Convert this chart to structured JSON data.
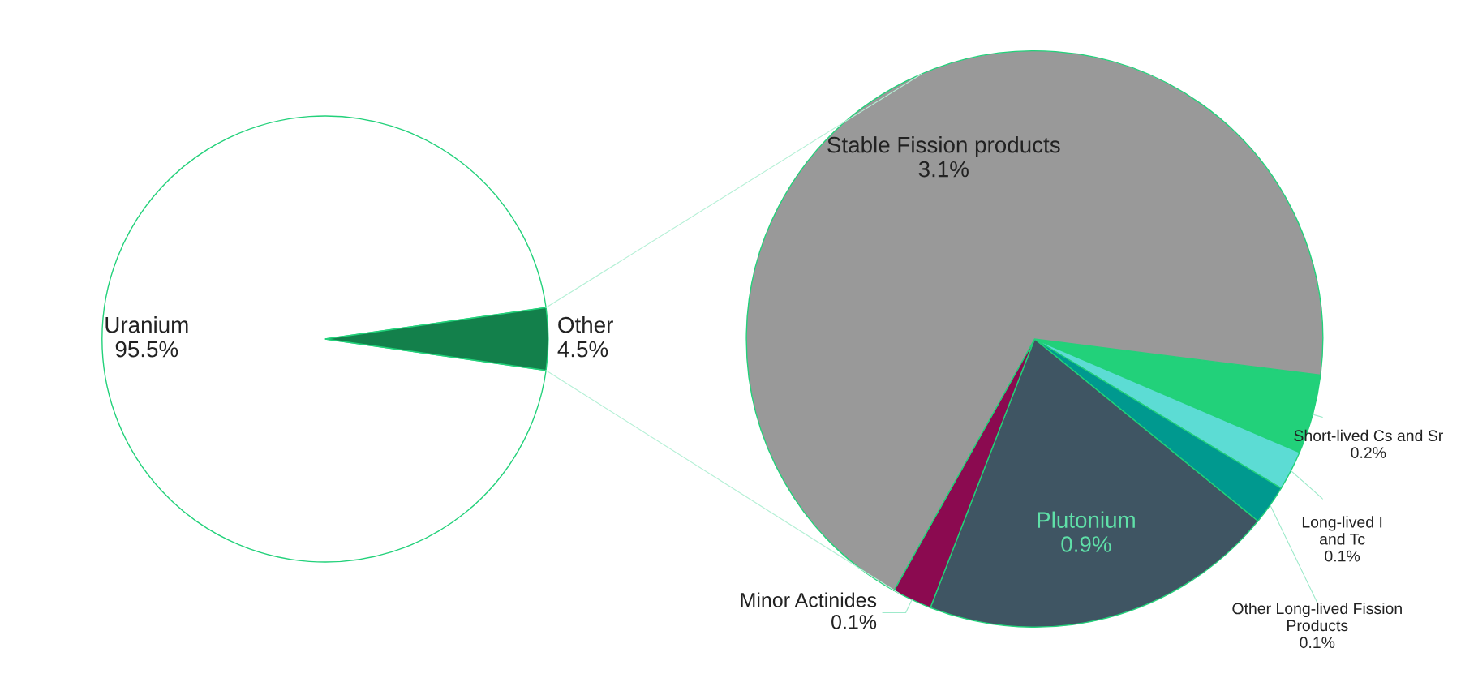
{
  "chart_data": [
    {
      "type": "pie",
      "categories": [
        "Uranium",
        "Other"
      ],
      "values": [
        95.5,
        4.5
      ],
      "value_labels": [
        "95.5%",
        "4.5%"
      ],
      "colors": [
        "#ffffff",
        "#13804b"
      ]
    },
    {
      "type": "pie",
      "categories": [
        "Short-lived Cs and Sr",
        "Long-lived I\nand Tc",
        "Other Long-lived Fission\nProducts",
        "Plutonium",
        "Minor Actinides",
        "Stable Fission products"
      ],
      "values": [
        0.2,
        0.1,
        0.1,
        0.9,
        0.1,
        3.1
      ],
      "value_labels": [
        "0.2%",
        "0.1%",
        "0.1%",
        "0.9%",
        "0.1%",
        "3.1%"
      ],
      "colors": [
        "#22d17a",
        "#5cdcd4",
        "#00998f",
        "#3f5563",
        "#8b0a50",
        "#999999"
      ]
    }
  ]
}
